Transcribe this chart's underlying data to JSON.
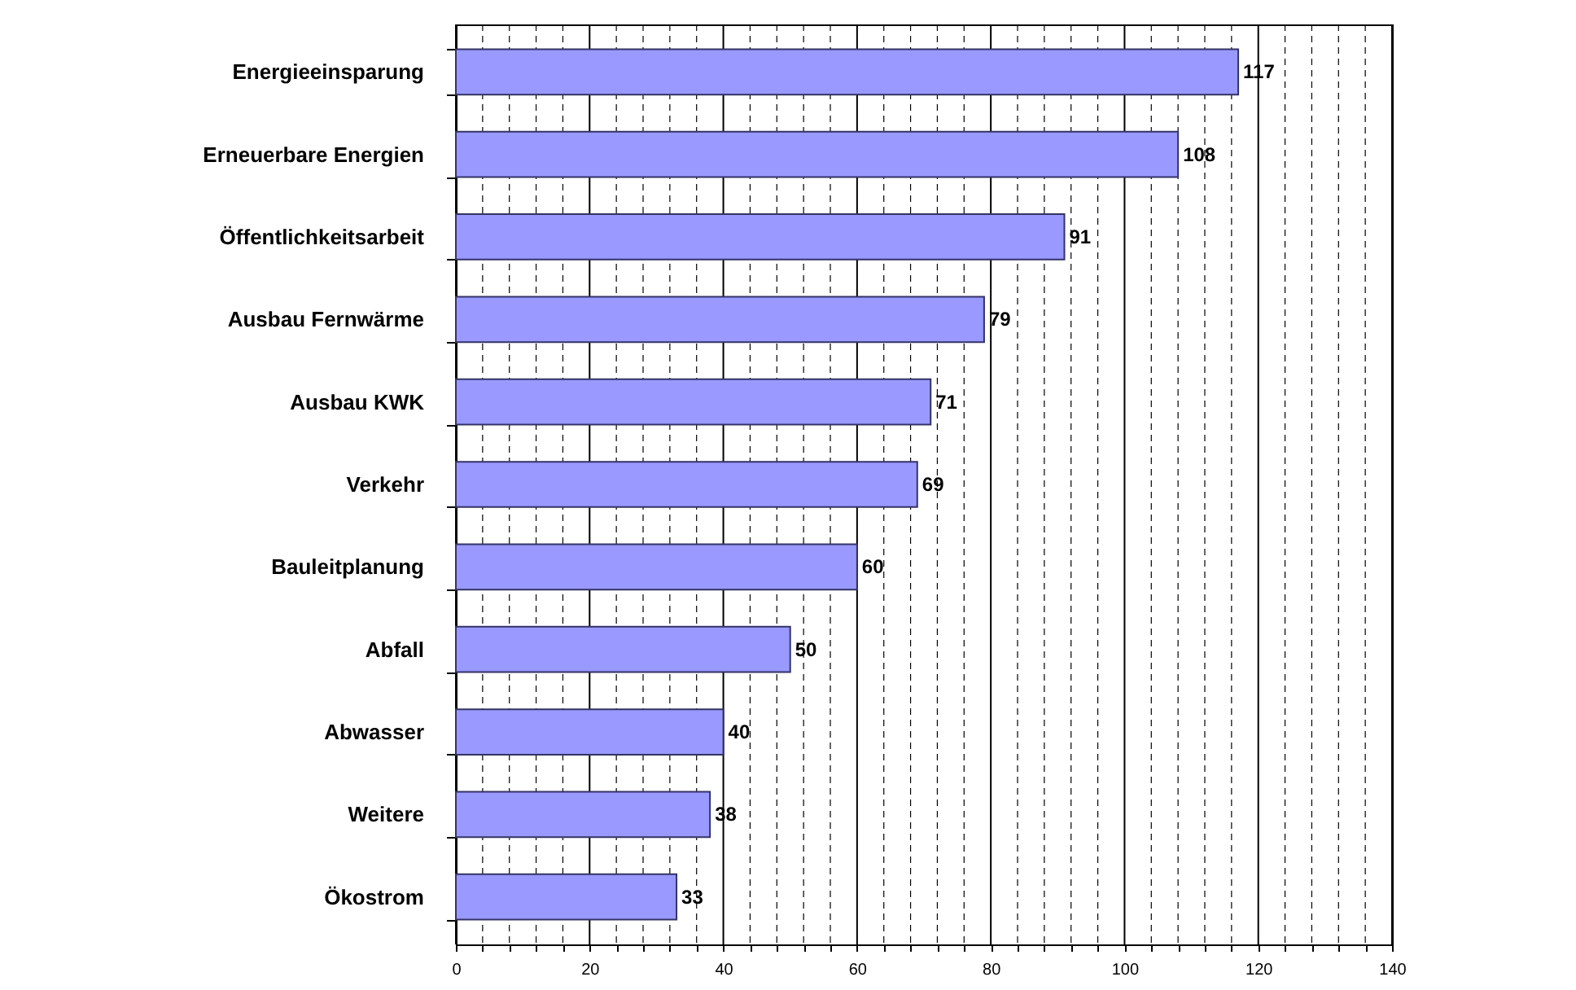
{
  "chart_data": {
    "type": "bar",
    "orientation": "horizontal",
    "categories": [
      "Energieeinsparung",
      "Erneuerbare Energien",
      "Öffentlichkeitsarbeit",
      "Ausbau Fernwärme",
      "Ausbau KWK",
      "Verkehr",
      "Bauleitplanung",
      "Abfall",
      "Abwasser",
      "Weitere",
      "Ökostrom"
    ],
    "values": [
      117,
      108,
      91,
      79,
      71,
      69,
      60,
      50,
      40,
      38,
      33
    ],
    "color": "#9999ff",
    "data_labels": true,
    "grid": "x",
    "xlim": [
      0,
      140
    ],
    "xticks": [
      0,
      {
        "value": 4,
        "label": null
      },
      {
        "value": 8,
        "label": null
      },
      {
        "value": 12,
        "label": null
      },
      {
        "value": 16,
        "label": null
      },
      20,
      {
        "value": 24,
        "label": null
      },
      {
        "value": 28,
        "label": null
      },
      {
        "value": 32,
        "label": null
      },
      {
        "value": 36,
        "label": null
      },
      40,
      {
        "value": 44,
        "label": null
      },
      {
        "value": 48,
        "label": null
      },
      {
        "value": 52,
        "label": null
      },
      {
        "value": 56,
        "label": null
      },
      60,
      {
        "value": 64,
        "label": null
      },
      {
        "value": 68,
        "label": null
      },
      {
        "value": 72,
        "label": null
      },
      {
        "value": 76,
        "label": null
      },
      80,
      {
        "value": 84,
        "label": null
      },
      {
        "value": 88,
        "label": null
      },
      {
        "value": 92,
        "label": null
      },
      {
        "value": 96,
        "label": null
      },
      100,
      {
        "value": 104,
        "label": null
      },
      {
        "value": 108,
        "label": null
      },
      {
        "value": 112,
        "label": null
      },
      {
        "value": 116,
        "label": null
      },
      120,
      {
        "value": 124,
        "label": null
      },
      {
        "value": 128,
        "label": null
      },
      {
        "value": 132,
        "label": null
      },
      {
        "value": 136,
        "label": null
      },
      140
    ]
  }
}
